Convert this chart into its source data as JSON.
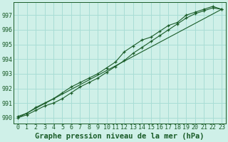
{
  "title": "Graphe pression niveau de la mer (hPa)",
  "background_color": "#cff0e8",
  "grid_color": "#a8ddd5",
  "line_color": "#1a5c28",
  "marker_color": "#1a5c28",
  "xlim": [
    -0.5,
    23.5
  ],
  "ylim": [
    989.6,
    997.9
  ],
  "yticks": [
    990,
    991,
    992,
    993,
    994,
    995,
    996,
    997
  ],
  "xticks": [
    0,
    1,
    2,
    3,
    4,
    5,
    6,
    7,
    8,
    9,
    10,
    11,
    12,
    13,
    14,
    15,
    16,
    17,
    18,
    19,
    20,
    21,
    22,
    23
  ],
  "series1_x": [
    0,
    1,
    2,
    3,
    4,
    5,
    6,
    7,
    8,
    9,
    10,
    11,
    12,
    13,
    14,
    15,
    16,
    17,
    18,
    19,
    20,
    21,
    22,
    23
  ],
  "series1_y": [
    990.0,
    990.2,
    990.5,
    990.8,
    991.0,
    991.3,
    991.7,
    992.1,
    992.4,
    992.7,
    993.1,
    993.5,
    993.9,
    994.4,
    994.8,
    995.2,
    995.6,
    996.0,
    996.4,
    996.8,
    997.1,
    997.3,
    997.5,
    997.4
  ],
  "series2_x": [
    0,
    1,
    2,
    3,
    4,
    5,
    6,
    7,
    8,
    9,
    10,
    11,
    12,
    13,
    14,
    15,
    16,
    17,
    18,
    19,
    20,
    21,
    22,
    23
  ],
  "series2_y": [
    990.1,
    990.3,
    990.7,
    991.0,
    991.3,
    991.7,
    992.1,
    992.4,
    992.7,
    993.0,
    993.4,
    993.8,
    994.5,
    994.9,
    995.3,
    995.5,
    995.9,
    996.3,
    996.5,
    997.0,
    997.2,
    997.4,
    997.6,
    997.4
  ],
  "trend_x": [
    0,
    23
  ],
  "trend_y": [
    990.0,
    997.4
  ],
  "title_fontsize": 7.5,
  "tick_fontsize": 6,
  "tick_color": "#1a5c28"
}
